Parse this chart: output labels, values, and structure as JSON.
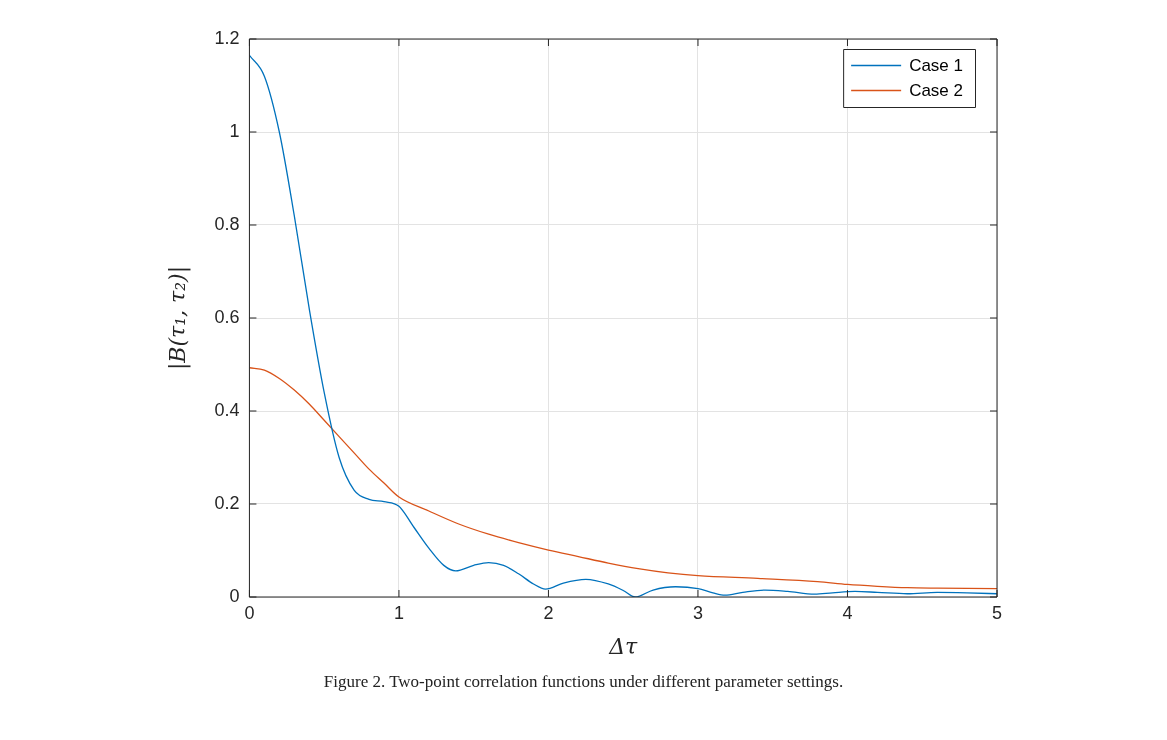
{
  "chart_data": {
    "type": "line",
    "xlabel": "Δτ",
    "ylabel": "|B(τ₁, τ₂)|",
    "xlim": [
      0,
      5
    ],
    "xticks": [
      0,
      1,
      2,
      3,
      4,
      5
    ],
    "ylim": [
      0,
      1.2
    ],
    "yticks": [
      0,
      0.2,
      0.4,
      0.6,
      0.8,
      1,
      1.2
    ],
    "grid": true,
    "legend": "top right",
    "marker": "none",
    "line_style": "solid",
    "annotations": [
      "Figure 2.  Two-point correlation functions under different parameter settings."
    ],
    "series": [
      {
        "name": "Case 1",
        "color": "#0072bd",
        "x": [
          0,
          0.1,
          0.2,
          0.3,
          0.4,
          0.5,
          0.6,
          0.7,
          0.8,
          0.9,
          1.0,
          1.1,
          1.2,
          1.3,
          1.38,
          1.5,
          1.6,
          1.7,
          1.8,
          1.9,
          1.98,
          2.1,
          2.25,
          2.4,
          2.5,
          2.58,
          2.7,
          2.85,
          3.0,
          3.1,
          3.18,
          3.3,
          3.45,
          3.6,
          3.78,
          3.9,
          4.05,
          4.2,
          4.4,
          4.6,
          4.8,
          5
        ],
        "values": [
          1.165,
          1.12,
          1.0,
          0.82,
          0.62,
          0.44,
          0.3,
          0.23,
          0.21,
          0.205,
          0.195,
          0.15,
          0.105,
          0.068,
          0.056,
          0.068,
          0.074,
          0.068,
          0.05,
          0.028,
          0.017,
          0.03,
          0.038,
          0.028,
          0.014,
          0.0,
          0.015,
          0.022,
          0.018,
          0.009,
          0.004,
          0.01,
          0.015,
          0.012,
          0.006,
          0.009,
          0.012,
          0.01,
          0.007,
          0.01,
          0.009,
          0.007
        ]
      },
      {
        "name": "Case 2",
        "color": "#d95319",
        "x": [
          0,
          0.1,
          0.2,
          0.3,
          0.4,
          0.5,
          0.6,
          0.7,
          0.8,
          0.9,
          1.0,
          1.2,
          1.4,
          1.6,
          1.8,
          2.0,
          2.2,
          2.4,
          2.6,
          2.8,
          3.0,
          3.4,
          3.8,
          4.0,
          4.2,
          4.4,
          4.6,
          5
        ],
        "values": [
          0.493,
          0.488,
          0.47,
          0.445,
          0.415,
          0.38,
          0.345,
          0.31,
          0.275,
          0.245,
          0.215,
          0.185,
          0.157,
          0.135,
          0.117,
          0.101,
          0.087,
          0.073,
          0.061,
          0.052,
          0.046,
          0.04,
          0.033,
          0.027,
          0.023,
          0.02,
          0.019,
          0.018
        ]
      }
    ]
  }
}
